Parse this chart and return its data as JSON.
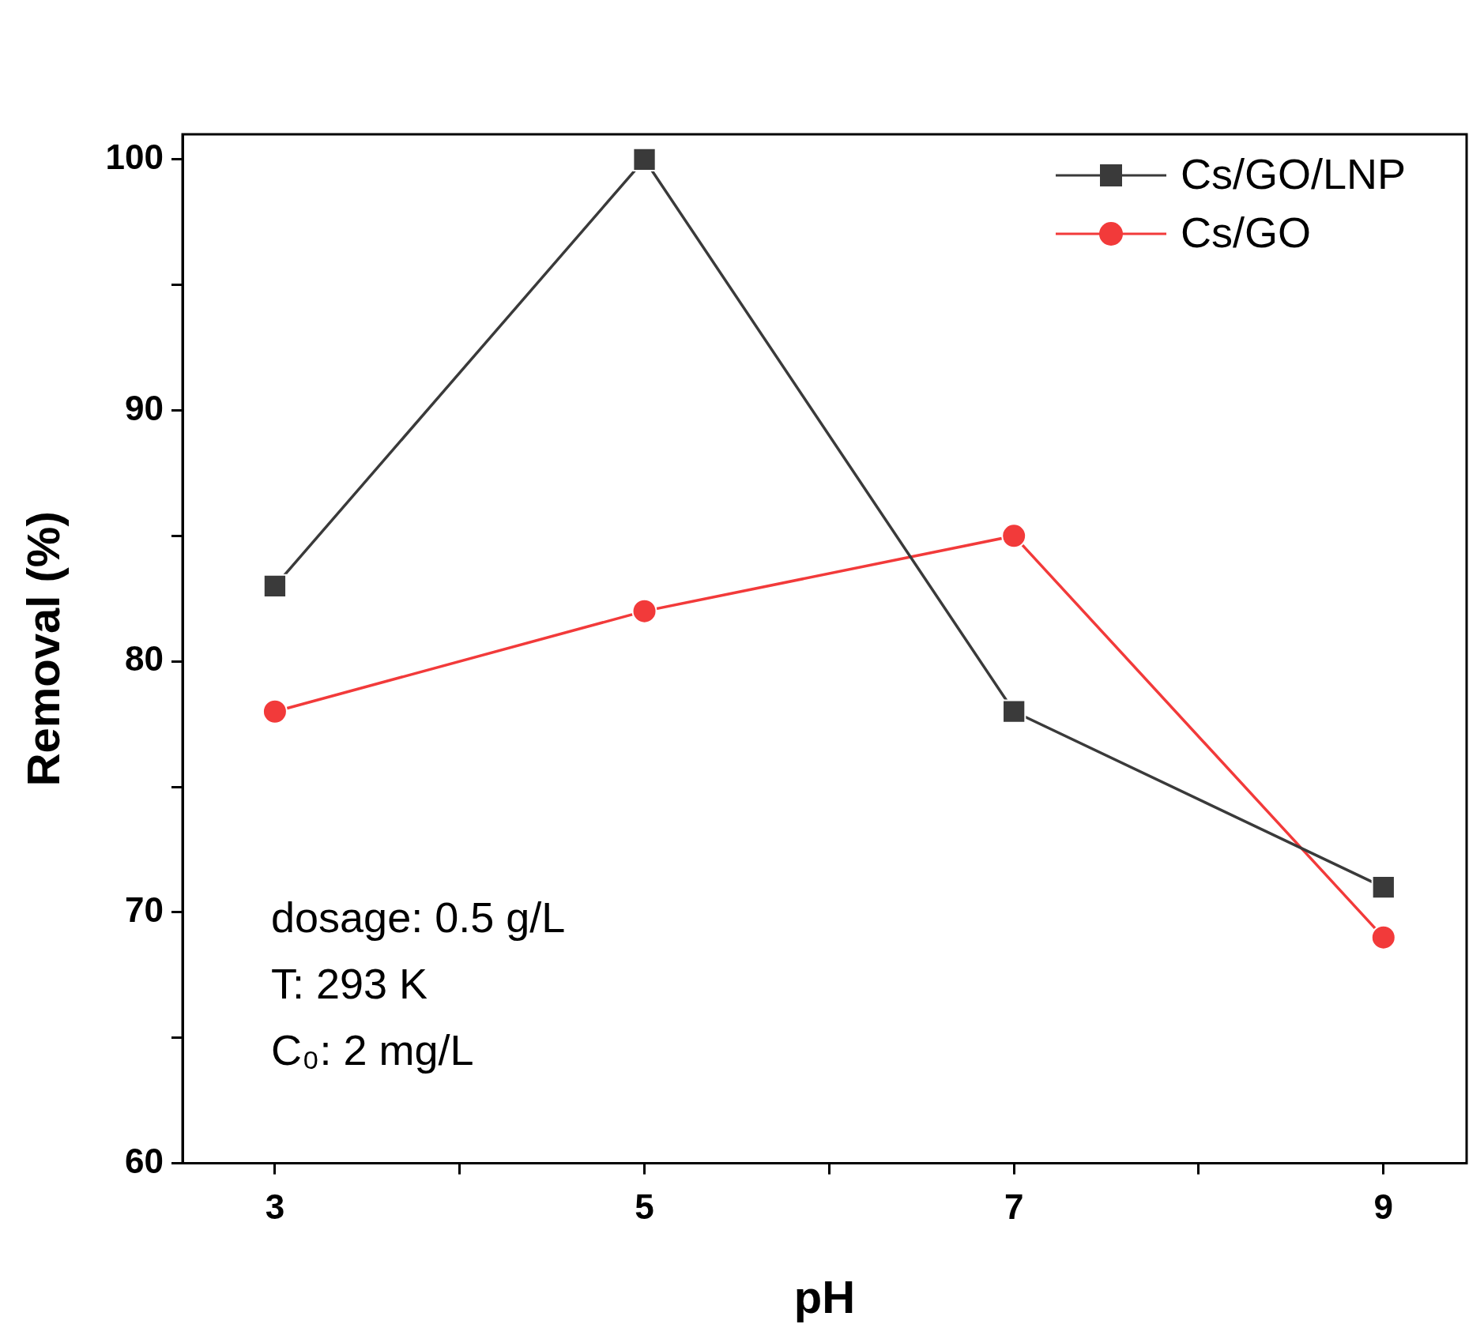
{
  "chart_data": {
    "type": "line",
    "xlabel": "pH",
    "ylabel": "Removal (%)",
    "xlim": [
      2.5,
      9.45
    ],
    "xticks": [
      3,
      {
        "value": 4,
        "label": null
      },
      5,
      {
        "value": 6,
        "label": null
      },
      7,
      {
        "value": 8,
        "label": null
      },
      9
    ],
    "ylim": [
      60,
      101
    ],
    "yticks": [
      60,
      {
        "value": 65,
        "label": null
      },
      70,
      {
        "value": 75,
        "label": null
      },
      80,
      {
        "value": 85,
        "label": null
      },
      90,
      {
        "value": 95,
        "label": null
      },
      100
    ],
    "x": [
      3,
      5,
      7,
      9
    ],
    "series": [
      {
        "name": "Cs/GO/LNP",
        "color": "#3a3a3a",
        "marker": "square",
        "values": [
          83,
          100,
          78,
          71
        ]
      },
      {
        "name": "Cs/GO",
        "color": "#f23a3a",
        "marker": "circle",
        "values": [
          78,
          82,
          85,
          69
        ]
      }
    ],
    "annotations": [
      "dosage: 0.5 g/L",
      "T: 293 K",
      "C₀: 2 mg/L"
    ],
    "legend": "top right",
    "grid": false,
    "line_style": "solid"
  }
}
